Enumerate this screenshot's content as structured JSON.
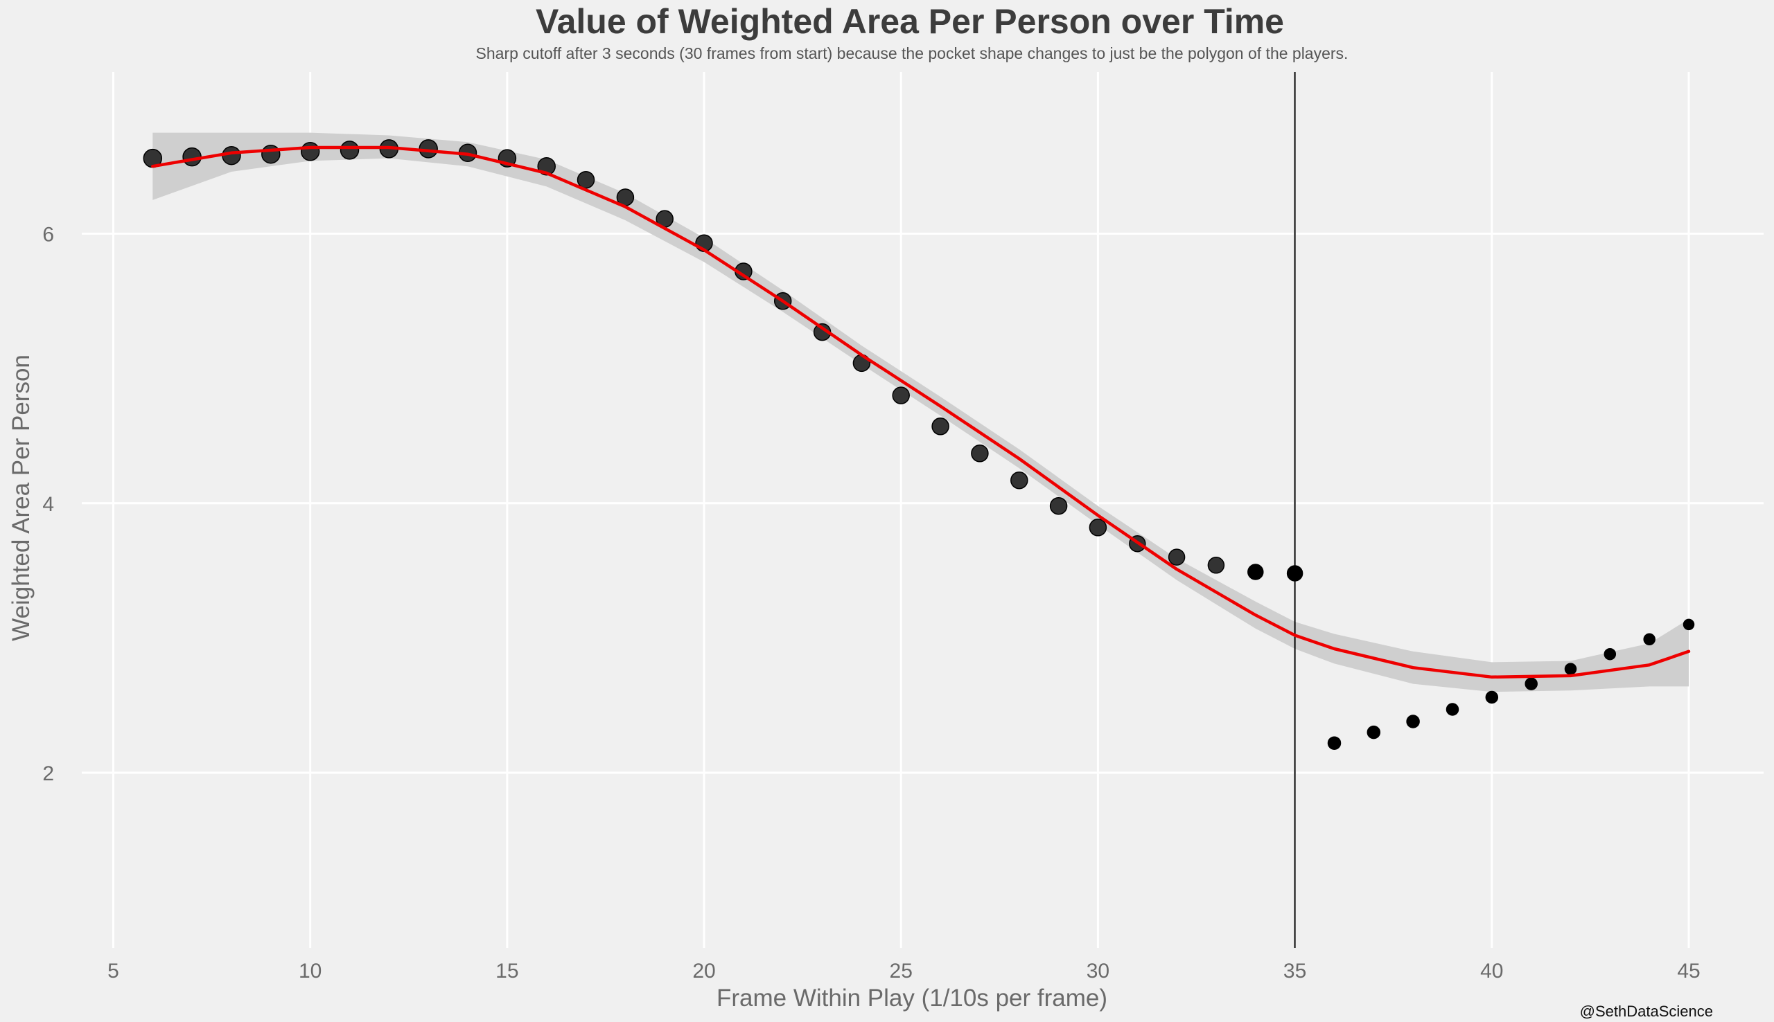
{
  "chart_data": {
    "type": "scatter",
    "title": "Value of Weighted Area Per Person over Time",
    "subtitle": "Sharp cutoff after 3 seconds (30 frames from start) because the pocket shape changes to just be the polygon of the players.",
    "xlabel": "Frame Within Play (1/10s per frame)",
    "ylabel": "Weighted Area Per Person",
    "caption": "@SethDataScience",
    "xlim": [
      4.2,
      46.9
    ],
    "ylim": [
      0.7,
      7.2
    ],
    "x_ticks": [
      5,
      10,
      15,
      20,
      25,
      30,
      35,
      40,
      45
    ],
    "y_ticks": [
      2,
      4,
      6
    ],
    "grid": true,
    "legend": "none",
    "vline_x": 35,
    "colors": {
      "background": "#f0f0f0",
      "grid": "#ffffff",
      "point_large": "#333333",
      "point_small": "#000000",
      "trend_line": "#ee0000",
      "confidence_band": "#cfcfcf",
      "vline": "#000000"
    },
    "series": [
      {
        "name": "observed",
        "x": [
          6,
          7,
          8,
          9,
          10,
          11,
          12,
          13,
          14,
          15,
          16,
          17,
          18,
          19,
          20,
          21,
          22,
          23,
          24,
          25,
          26,
          27,
          28,
          29,
          30,
          31,
          32,
          33,
          34,
          35,
          36,
          37,
          38,
          39,
          40,
          41,
          42,
          43,
          44,
          45
        ],
        "y": [
          6.56,
          6.57,
          6.58,
          6.59,
          6.61,
          6.62,
          6.63,
          6.63,
          6.6,
          6.56,
          6.5,
          6.4,
          6.27,
          6.11,
          5.93,
          5.72,
          5.5,
          5.27,
          5.04,
          4.8,
          4.57,
          4.37,
          4.17,
          3.98,
          3.82,
          3.7,
          3.6,
          3.54,
          3.49,
          3.48,
          2.22,
          2.3,
          2.38,
          2.47,
          2.56,
          2.66,
          2.77,
          2.88,
          2.99,
          3.1
        ],
        "sizes": [
          13,
          13,
          13,
          13,
          13,
          13,
          13,
          13,
          12.5,
          12.5,
          12.5,
          12,
          12,
          12,
          12,
          12,
          12,
          12,
          12,
          12,
          12,
          12,
          12,
          12,
          12,
          11.5,
          11.5,
          11.5,
          11,
          11,
          9,
          9,
          9,
          8.5,
          8.5,
          8.5,
          8,
          8,
          8,
          7.5
        ]
      },
      {
        "name": "smooth_fit",
        "x": [
          6,
          8,
          10,
          12,
          14,
          16,
          18,
          20,
          22,
          24,
          26,
          28,
          30,
          32,
          34,
          35,
          36,
          38,
          40,
          42,
          44,
          45
        ],
        "y": [
          6.5,
          6.6,
          6.64,
          6.64,
          6.59,
          6.45,
          6.2,
          5.88,
          5.5,
          5.1,
          4.72,
          4.33,
          3.91,
          3.51,
          3.17,
          3.02,
          2.92,
          2.78,
          2.71,
          2.72,
          2.8,
          2.9
        ],
        "ci_low": [
          6.25,
          6.46,
          6.54,
          6.56,
          6.5,
          6.35,
          6.1,
          5.79,
          5.42,
          5.03,
          4.65,
          4.26,
          3.84,
          3.43,
          3.07,
          2.92,
          2.81,
          2.66,
          2.6,
          2.61,
          2.64,
          2.64
        ],
        "ci_high": [
          6.75,
          6.75,
          6.75,
          6.73,
          6.68,
          6.55,
          6.3,
          5.97,
          5.58,
          5.17,
          4.79,
          4.4,
          3.98,
          3.59,
          3.27,
          3.12,
          3.03,
          2.9,
          2.82,
          2.83,
          2.96,
          3.14
        ]
      }
    ]
  }
}
